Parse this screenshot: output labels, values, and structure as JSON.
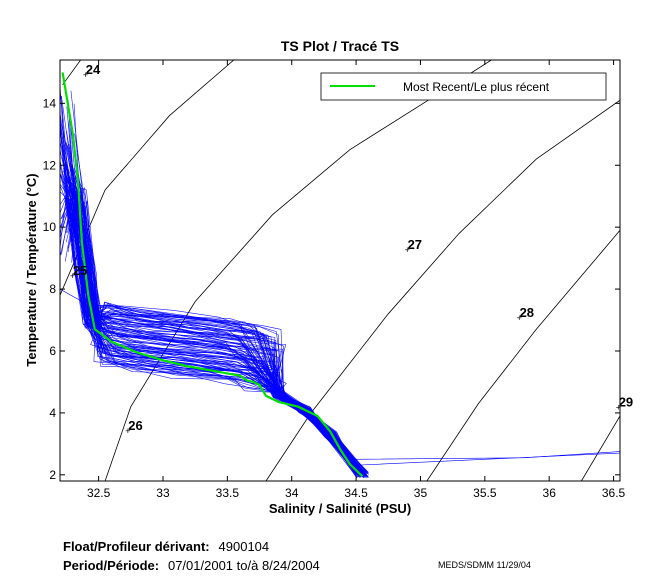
{
  "chart_data": {
    "type": "line",
    "title": "TS Plot / Tracé TS",
    "xlabel": "Salinity / Salinité (PSU)",
    "ylabel": "Temperature / Température (°C)",
    "xlim": [
      32.2,
      36.55
    ],
    "ylim": [
      1.8,
      15.4
    ],
    "xticks": [
      "32.5",
      "33",
      "33.5",
      "34",
      "34.5",
      "35",
      "35.5",
      "36",
      "36.5"
    ],
    "yticks": [
      "2",
      "4",
      "6",
      "8",
      "10",
      "12",
      "14"
    ],
    "grid": false,
    "legend": {
      "placement": "top-right",
      "entries": [
        "Most Recent/Le plus récent"
      ]
    },
    "density_contours": [
      {
        "label": "24",
        "points": [
          [
            32.22,
            14.6
          ],
          [
            32.36,
            15.4
          ]
        ],
        "label_at": [
          32.4,
          14.95
        ]
      },
      {
        "label": "25",
        "points": [
          [
            32.2,
            7.8
          ],
          [
            32.55,
            11.2
          ],
          [
            33.05,
            13.6
          ],
          [
            33.55,
            15.4
          ]
        ],
        "label_at": [
          32.3,
          8.45
        ]
      },
      {
        "label": "26",
        "points": [
          [
            32.55,
            1.8
          ],
          [
            32.75,
            4.2
          ],
          [
            33.25,
            7.6
          ],
          [
            33.85,
            10.4
          ],
          [
            34.45,
            12.5
          ],
          [
            35.25,
            14.6
          ],
          [
            35.55,
            15.4
          ]
        ],
        "label_at": [
          32.73,
          3.45
        ]
      },
      {
        "label": "27",
        "points": [
          [
            33.8,
            1.8
          ],
          [
            34.15,
            4.0
          ],
          [
            34.75,
            7.2
          ],
          [
            35.3,
            9.8
          ],
          [
            35.9,
            12.2
          ],
          [
            36.55,
            14.1
          ]
        ],
        "label_at": [
          34.9,
          9.3
        ]
      },
      {
        "label": "28",
        "points": [
          [
            35.05,
            1.8
          ],
          [
            35.45,
            4.3
          ],
          [
            35.9,
            6.7
          ],
          [
            36.55,
            9.9
          ]
        ],
        "label_at": [
          35.77,
          7.1
        ]
      },
      {
        "label": "29",
        "points": [
          [
            36.25,
            1.8
          ],
          [
            36.55,
            3.9
          ]
        ],
        "label_at": [
          36.54,
          4.2
        ]
      }
    ],
    "series": [
      {
        "name": "Most Recent/Le plus récent",
        "color": "#00e000",
        "x": [
          32.22,
          32.3,
          32.34,
          32.37,
          32.42,
          32.47,
          32.6,
          32.8,
          33.0,
          33.2,
          33.4,
          33.6,
          33.65,
          33.7,
          33.75,
          33.8,
          33.9,
          34.05,
          34.2,
          34.3,
          34.38,
          34.45,
          34.55
        ],
        "y": [
          15.0,
          13.0,
          11.5,
          9.5,
          7.8,
          6.7,
          6.3,
          5.95,
          5.7,
          5.5,
          5.35,
          5.2,
          5.05,
          5.0,
          4.9,
          4.55,
          4.35,
          4.2,
          3.9,
          3.4,
          2.8,
          2.35,
          1.95
        ]
      },
      {
        "name": "",
        "color": "#0000ff",
        "profile_count": 110,
        "representative_x": [
          32.25,
          32.32,
          32.4,
          32.45,
          32.55,
          32.8,
          33.2,
          33.6,
          33.75,
          33.9,
          34.1,
          34.3,
          34.55
        ],
        "representative_y": [
          14.8,
          11.0,
          8.5,
          7.0,
          6.6,
          6.4,
          6.2,
          6.0,
          5.8,
          4.6,
          4.1,
          3.3,
          2.0
        ]
      }
    ]
  },
  "footer": {
    "float_label": "Float/Profileur dérivant:",
    "float_id": "4900104",
    "period_label": "Period/Période:",
    "period_value": "07/01/2001  to/à  8/24/2004",
    "agency": "MEDS/SDMM  11/29/04"
  }
}
